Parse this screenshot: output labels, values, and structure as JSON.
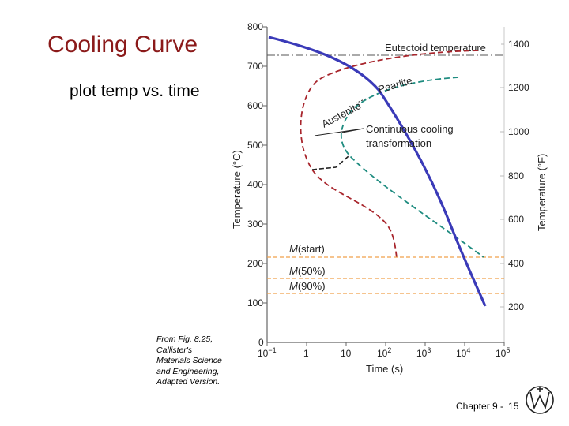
{
  "slide": {
    "title": "Cooling Curve",
    "subtitle": "plot temp vs. time",
    "credit": [
      "From Fig. 8.25,",
      "Callister's",
      "Materials Science",
      "and Engineering,",
      "Adapted Version."
    ],
    "chapter": "Chapter 9 -",
    "page": "15",
    "logo_icon": "wiley-logo-icon"
  },
  "diagram": {
    "y_ticks_c": [
      "800",
      "700",
      "600",
      "500",
      "400",
      "300",
      "200",
      "100",
      "0"
    ],
    "y_ticks_f": [
      "1400",
      "1200",
      "1000",
      "800",
      "600",
      "400",
      "200"
    ],
    "x_ticks": [
      {
        "base": "10",
        "exp": "−1"
      },
      {
        "base": "1",
        "exp": ""
      },
      {
        "base": "10",
        "exp": ""
      },
      {
        "base": "10",
        "exp": "2"
      },
      {
        "base": "10",
        "exp": "3"
      },
      {
        "base": "10",
        "exp": "4"
      },
      {
        "base": "10",
        "exp": "5"
      }
    ],
    "y_label_left": "Temperature (°C)",
    "y_label_right": "Temperature (°F)",
    "x_label": "Time (s)",
    "eutectoid_label": "Eutectoid temperature",
    "austenite_label": "Austenite",
    "pearlite_label": "Pearlite",
    "cct_label_1": "Continuous cooling",
    "cct_label_2": "transformation",
    "m_start_sym": "M",
    "m_start_pct": "(start)",
    "m50_sym": "M",
    "m50_pct": "(50%)",
    "m90_sym": "M",
    "m90_pct": "(90%)"
  },
  "colors": {
    "title": "#8b1a1a",
    "cooling_curve": "#3a3ab8",
    "start_curve": "#a8252c",
    "finish_curve": "#1f8c80",
    "martensite_lines": "#f0a04b"
  }
}
